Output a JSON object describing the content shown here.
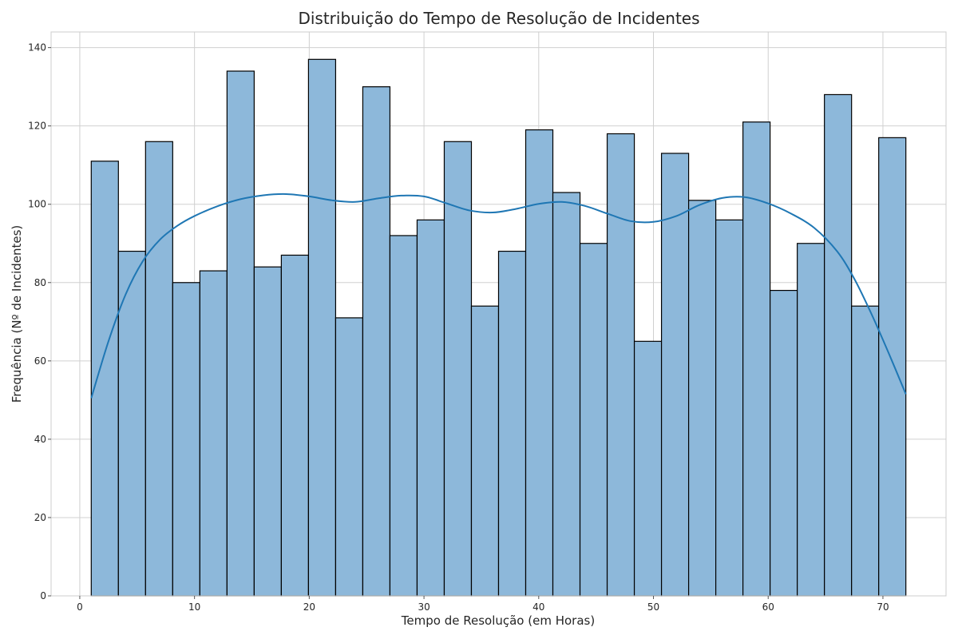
{
  "chart_data": {
    "type": "histogram",
    "title": "Distribuição do Tempo de Resolução de Incidentes",
    "xlabel": "Tempo de Resolução (em Horas)",
    "ylabel": "Frequência (Nº de Incidentes)",
    "xlim": [
      -2.5,
      75.5
    ],
    "ylim": [
      0,
      144
    ],
    "xticks": [
      0,
      10,
      20,
      30,
      40,
      50,
      60,
      70
    ],
    "yticks": [
      0,
      20,
      40,
      60,
      80,
      100,
      120,
      140
    ],
    "grid": true,
    "bins": {
      "start": 1.0,
      "end": 72.0,
      "counts": [
        111,
        88,
        116,
        80,
        83,
        134,
        84,
        87,
        137,
        71,
        130,
        92,
        96,
        116,
        74,
        88,
        119,
        103,
        90,
        118,
        65,
        113,
        101,
        96,
        121,
        78,
        90,
        128,
        74,
        117
      ]
    },
    "kde": {
      "x": [
        1,
        2.5,
        4,
        5.5,
        7,
        8.5,
        10,
        12,
        14,
        16,
        18,
        20,
        22,
        24,
        26,
        28,
        30,
        32,
        34,
        36,
        38,
        40,
        42,
        44,
        46,
        48,
        50,
        52,
        54,
        56,
        58,
        60,
        62,
        64,
        66,
        67.5,
        69,
        70.5,
        72
      ],
      "y": [
        50.5,
        65,
        77,
        85.5,
        91,
        94.5,
        97,
        99.5,
        101.3,
        102.3,
        102.6,
        102.0,
        101.0,
        100.6,
        101.5,
        102.2,
        102.0,
        100.2,
        98.4,
        97.9,
        98.8,
        100.1,
        100.6,
        99.6,
        97.6,
        95.7,
        95.5,
        97.0,
        99.8,
        101.6,
        101.8,
        100.2,
        97.6,
        94.0,
        88.0,
        81.0,
        72.0,
        62.0,
        51.5
      ]
    },
    "colors": {
      "bar_fill": "#8db8da",
      "bar_edge": "#000000",
      "kde_line": "#1f77b4",
      "grid": "#d0d0d0",
      "axis": "#cccccc"
    }
  }
}
